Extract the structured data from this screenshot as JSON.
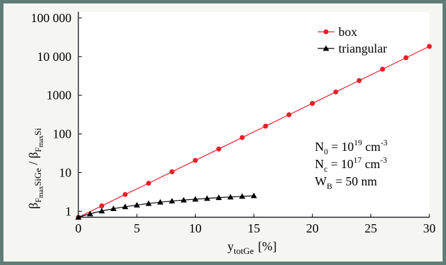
{
  "colors": {
    "frame": "#5f7d76",
    "background": "#f5f5f1",
    "box": "#e8202a",
    "triangular": "#000000"
  },
  "chart_data": {
    "type": "line",
    "xlabel": {
      "main": "y",
      "sub": "totGe",
      "unit": "[%]"
    },
    "ylabel": {
      "num": "β",
      "num_sub": "F",
      "num_subsub": "max",
      "num_tail": "SiGe",
      "sep": " / ",
      "den": "β",
      "den_sub": "F",
      "den_subsub": "max",
      "den_tail": "Si"
    },
    "xlim": [
      0,
      30
    ],
    "ylim": [
      0.7,
      100000
    ],
    "yscale": "log",
    "x_ticks": [
      0,
      5,
      10,
      15,
      20,
      25,
      30
    ],
    "y_ticks": [
      {
        "value": 1,
        "label": "1"
      },
      {
        "value": 10,
        "label": "10"
      },
      {
        "value": 100,
        "label": "100"
      },
      {
        "value": 1000,
        "label": "1000"
      },
      {
        "value": 10000,
        "label": "10 000"
      },
      {
        "value": 100000,
        "label": "100 000"
      }
    ],
    "legend_position": "top-right",
    "series": [
      {
        "name": "box",
        "marker": "circle",
        "x": [
          0,
          2,
          4,
          6,
          8,
          10,
          12,
          14,
          16,
          18,
          20,
          22,
          24,
          26,
          28,
          30
        ],
        "y": [
          0.7,
          1.38,
          2.72,
          5.3,
          10.5,
          20.7,
          40.8,
          80.5,
          159,
          313,
          617,
          1218,
          2400,
          4730,
          9330,
          18400
        ]
      },
      {
        "name": "triangular",
        "marker": "triangle",
        "x": [
          0,
          1,
          2,
          3,
          4,
          5,
          6,
          7,
          8,
          9,
          10,
          11,
          12,
          13,
          14,
          15
        ],
        "y": [
          0.7,
          0.86,
          1.02,
          1.17,
          1.31,
          1.45,
          1.59,
          1.72,
          1.84,
          1.95,
          2.05,
          2.15,
          2.25,
          2.34,
          2.43,
          2.52
        ]
      }
    ],
    "annotations": [
      {
        "base": "N",
        "sub": "0",
        "eq": " = 10",
        "sup": "19",
        "unit": " cm",
        "unit_sup": "-3"
      },
      {
        "base": "N",
        "sub": "c",
        "eq": " = 10",
        "sup": "17",
        "unit": " cm",
        "unit_sup": "-3"
      },
      {
        "base": "W",
        "sub": "B",
        "eq": " = 50 nm",
        "sup": "",
        "unit": "",
        "unit_sup": ""
      }
    ]
  }
}
